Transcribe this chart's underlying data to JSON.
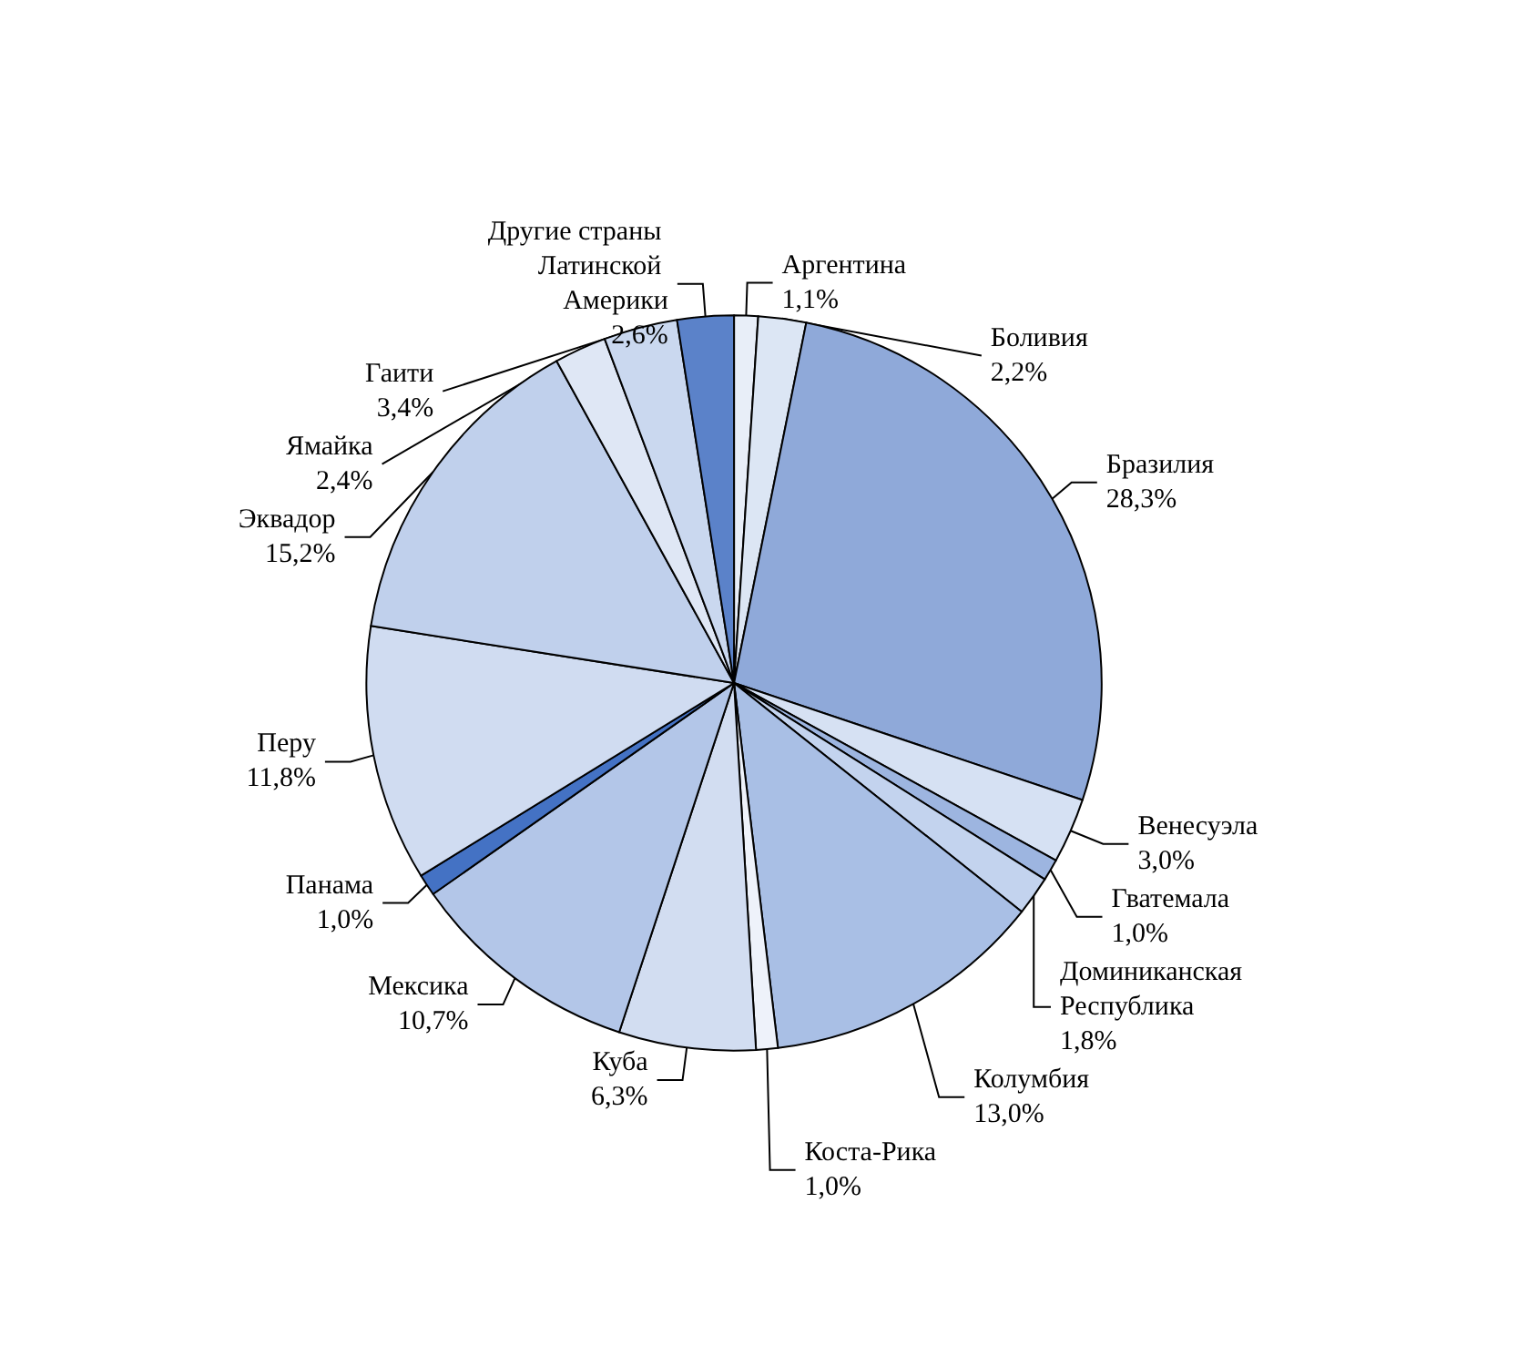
{
  "chart_data": {
    "type": "pie",
    "categories": [
      "Аргентина",
      "Боливия",
      "Бразилия",
      "Венесуэла",
      "Гватемала",
      "Доминиканская Республика",
      "Колумбия",
      "Коста-Рика",
      "Куба",
      "Мексика",
      "Панама",
      "Перу",
      "Эквадор",
      "Ямайка",
      "Гаити",
      "Другие страны Латинской Америки"
    ],
    "values": [
      1.1,
      2.2,
      28.3,
      3.0,
      1.0,
      1.8,
      13.0,
      1.0,
      6.3,
      10.7,
      1.0,
      11.8,
      15.2,
      2.4,
      3.4,
      2.6
    ],
    "value_labels": [
      "1,1%",
      "2,2%",
      "28,3%",
      "3,0%",
      "1,0%",
      "1,8%",
      "13,0%",
      "1,0%",
      "6,3%",
      "10,7%",
      "1,0%",
      "11,8%",
      "15,2%",
      "2,4%",
      "3,4%",
      "2,6%"
    ],
    "colors": [
      "#e8eef8",
      "#dce6f4",
      "#8fa9d9",
      "#d6e1f3",
      "#9db5e0",
      "#c3d3ee",
      "#a9bfe5",
      "#eef2fa",
      "#d2ddf1",
      "#b3c6e8",
      "#4472c4",
      "#d0dcf1",
      "#c0d0ec",
      "#dfe7f5",
      "#cad8ef",
      "#5b82c9"
    ],
    "legend": false
  }
}
